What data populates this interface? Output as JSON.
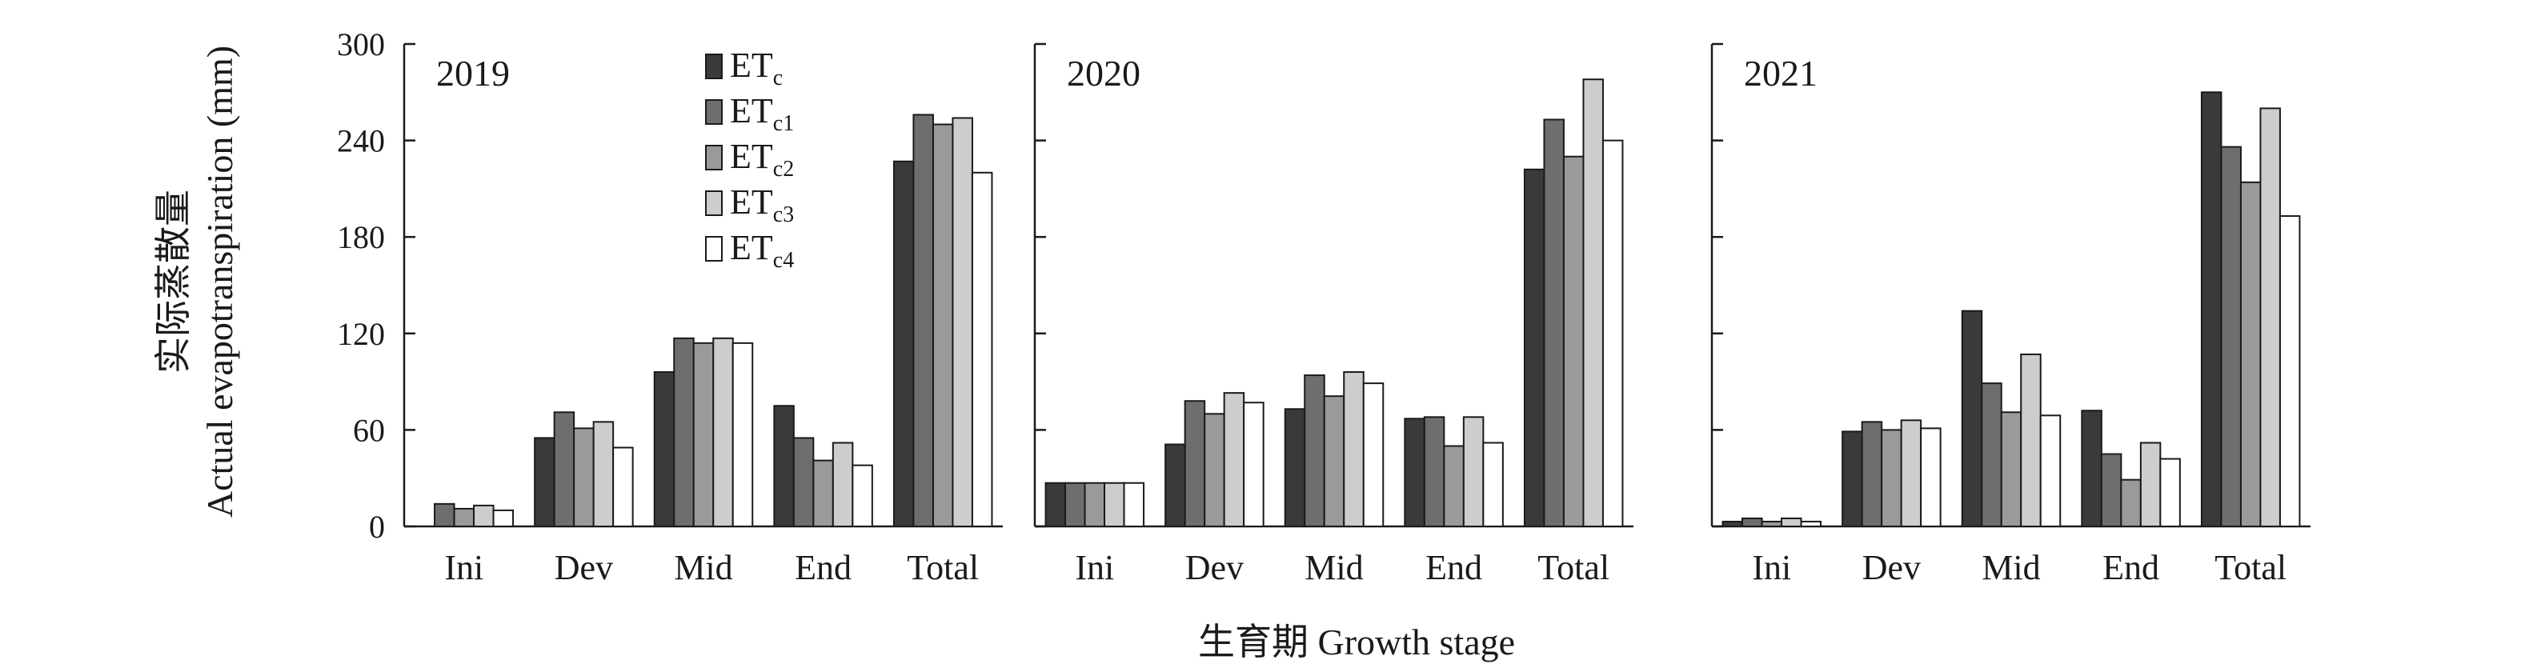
{
  "figure": {
    "ylabel_cn": "实际蒸散量",
    "ylabel_en": "Actual evapotranspiration (mm)",
    "xlabel": "生育期 Growth stage"
  },
  "chart_data": {
    "type": "bar",
    "categories": [
      "Ini",
      "Dev",
      "Mid",
      "End",
      "Total"
    ],
    "ylim": [
      0,
      300
    ],
    "yticks": [
      0,
      60,
      120,
      180,
      240,
      300
    ],
    "ylabel": "实际蒸散量 Actual evapotranspiration (mm)",
    "xlabel": "生育期 Growth stage",
    "grid": false,
    "legend_position": "top, inside first panel",
    "series_names": [
      {
        "main": "ET",
        "sub": "c"
      },
      {
        "main": "ET",
        "sub": "c1"
      },
      {
        "main": "ET",
        "sub": "c2"
      },
      {
        "main": "ET",
        "sub": "c3"
      },
      {
        "main": "ET",
        "sub": "c4"
      }
    ],
    "series_colors": [
      "#3a3a3a",
      "#6e6e6e",
      "#9a9a9a",
      "#cdcdcd",
      "#ffffff"
    ],
    "panels": [
      {
        "label": "2019",
        "series": [
          {
            "name": "ETc",
            "values": [
              0,
              55,
              96,
              75,
              227
            ]
          },
          {
            "name": "ETc1",
            "values": [
              14,
              71,
              117,
              55,
              256
            ]
          },
          {
            "name": "ETc2",
            "values": [
              11,
              61,
              114,
              41,
              250
            ]
          },
          {
            "name": "ETc3",
            "values": [
              13,
              65,
              117,
              52,
              254
            ]
          },
          {
            "name": "ETc4",
            "values": [
              10,
              49,
              114,
              38,
              220
            ]
          }
        ]
      },
      {
        "label": "2020",
        "series": [
          {
            "name": "ETc",
            "values": [
              27,
              51,
              73,
              67,
              222
            ]
          },
          {
            "name": "ETc1",
            "values": [
              27,
              78,
              94,
              68,
              253
            ]
          },
          {
            "name": "ETc2",
            "values": [
              27,
              70,
              81,
              50,
              230
            ]
          },
          {
            "name": "ETc3",
            "values": [
              27,
              83,
              96,
              68,
              278
            ]
          },
          {
            "name": "ETc4",
            "values": [
              27,
              77,
              89,
              52,
              240
            ]
          }
        ]
      },
      {
        "label": "2021",
        "series": [
          {
            "name": "ETc",
            "values": [
              3,
              59,
              134,
              72,
              270
            ]
          },
          {
            "name": "ETc1",
            "values": [
              5,
              65,
              89,
              45,
              236
            ]
          },
          {
            "name": "ETc2",
            "values": [
              3,
              60,
              71,
              29,
              214
            ]
          },
          {
            "name": "ETc3",
            "values": [
              5,
              66,
              107,
              52,
              260
            ]
          },
          {
            "name": "ETc4",
            "values": [
              3,
              61,
              69,
              42,
              193
            ]
          }
        ]
      }
    ]
  }
}
